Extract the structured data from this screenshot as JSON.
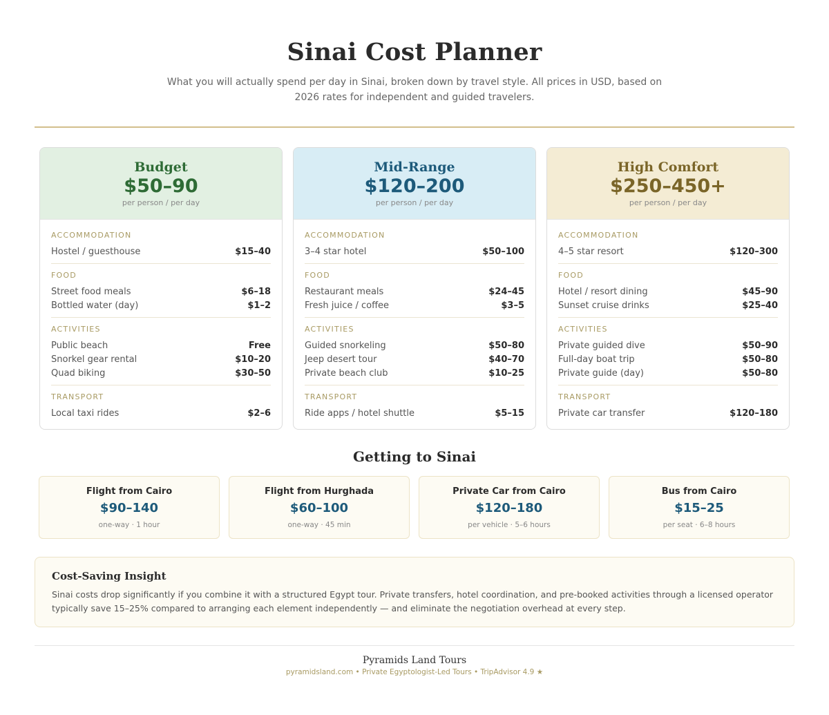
{
  "header": {
    "title": "Sinai Cost Planner",
    "subtitle": "What you will actually spend per day in Sinai, broken down by travel style. All prices in USD, based on 2026 rates for independent and guided travelers."
  },
  "tiers": [
    {
      "name": "Budget",
      "price": "$50–90",
      "unit": "per person / per day",
      "sections": [
        {
          "title": "ACCOMMODATION",
          "rows": [
            {
              "label": "Hostel / guesthouse",
              "value": "$15–40"
            }
          ]
        },
        {
          "title": "FOOD",
          "rows": [
            {
              "label": "Street food meals",
              "value": "$6–18"
            },
            {
              "label": "Bottled water (day)",
              "value": "$1–2"
            }
          ]
        },
        {
          "title": "ACTIVITIES",
          "rows": [
            {
              "label": "Public beach",
              "value": "Free"
            },
            {
              "label": "Snorkel gear rental",
              "value": "$10–20"
            },
            {
              "label": "Quad biking",
              "value": "$30–50"
            }
          ]
        },
        {
          "title": "TRANSPORT",
          "rows": [
            {
              "label": "Local taxi rides",
              "value": "$2–6"
            }
          ]
        }
      ]
    },
    {
      "name": "Mid-Range",
      "price": "$120–200",
      "unit": "per person / per day",
      "sections": [
        {
          "title": "ACCOMMODATION",
          "rows": [
            {
              "label": "3–4 star hotel",
              "value": "$50–100"
            }
          ]
        },
        {
          "title": "FOOD",
          "rows": [
            {
              "label": "Restaurant meals",
              "value": "$24–45"
            },
            {
              "label": "Fresh juice / coffee",
              "value": "$3–5"
            }
          ]
        },
        {
          "title": "ACTIVITIES",
          "rows": [
            {
              "label": "Guided snorkeling",
              "value": "$50–80"
            },
            {
              "label": "Jeep desert tour",
              "value": "$40–70"
            },
            {
              "label": "Private beach club",
              "value": "$10–25"
            }
          ]
        },
        {
          "title": "TRANSPORT",
          "rows": [
            {
              "label": "Ride apps / hotel shuttle",
              "value": "$5–15"
            }
          ]
        }
      ]
    },
    {
      "name": "High Comfort",
      "price": "$250–450+",
      "unit": "per person / per day",
      "sections": [
        {
          "title": "ACCOMMODATION",
          "rows": [
            {
              "label": "4–5 star resort",
              "value": "$120–300"
            }
          ]
        },
        {
          "title": "FOOD",
          "rows": [
            {
              "label": "Hotel / resort dining",
              "value": "$45–90"
            },
            {
              "label": "Sunset cruise drinks",
              "value": "$25–40"
            }
          ]
        },
        {
          "title": "ACTIVITIES",
          "rows": [
            {
              "label": "Private guided dive",
              "value": "$50–90"
            },
            {
              "label": "Full-day boat trip",
              "value": "$50–80"
            },
            {
              "label": "Private guide (day)",
              "value": "$50–80"
            }
          ]
        },
        {
          "title": "TRANSPORT",
          "rows": [
            {
              "label": "Private car transfer",
              "value": "$120–180"
            }
          ]
        }
      ]
    }
  ],
  "getting": {
    "title": "Getting to Sinai",
    "routes": [
      {
        "name": "Flight from Cairo",
        "price": "$90–140",
        "note": "one-way · 1 hour"
      },
      {
        "name": "Flight from Hurghada",
        "price": "$60–100",
        "note": "one-way · 45 min"
      },
      {
        "name": "Private Car from Cairo",
        "price": "$120–180",
        "note": "per vehicle · 5–6 hours"
      },
      {
        "name": "Bus from Cairo",
        "price": "$15–25",
        "note": "per seat · 6–8 hours"
      }
    ]
  },
  "insight": {
    "title": "Cost-Saving Insight",
    "text": "Sinai costs drop significantly if you combine it with a structured Egypt tour. Private transfers, hotel coordination, and pre-booked activities through a licensed operator typically save 15–25% compared to arranging each element independently — and eliminate the negotiation overhead at every step."
  },
  "footer": {
    "name": "Pyramids Land Tours",
    "meta": "pyramidsland.com • Private Egyptologist-Led Tours • TripAdvisor 4.9 ★"
  }
}
